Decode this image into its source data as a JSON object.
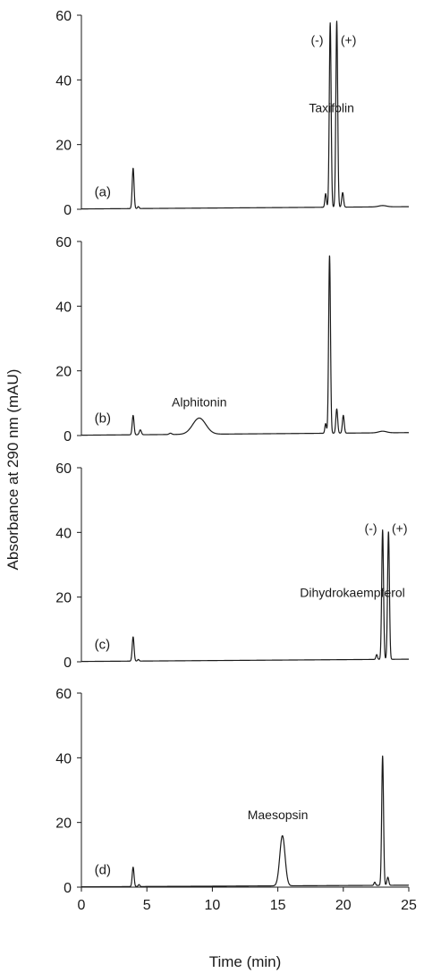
{
  "chart_data": {
    "type": "line",
    "ylabel": "Absorbance at 290 nm (mAU)",
    "xlabel": "Time (min)",
    "xlim": [
      0,
      25
    ],
    "ylim": [
      0,
      60
    ],
    "xticks": [
      0,
      5,
      10,
      15,
      20,
      25
    ],
    "yticks": [
      0,
      20,
      40,
      60
    ],
    "grid": false,
    "panels": [
      {
        "tag": "(a)",
        "annotations": [
          {
            "text": "Taxifolin",
            "x": 19.1,
            "y": 30
          },
          {
            "text": "(-)",
            "x": 18.0,
            "y": 51
          },
          {
            "text": "(+)",
            "x": 20.4,
            "y": 51
          }
        ],
        "baseline_start": 0.1,
        "baseline_end": 0.8,
        "peaks": [
          {
            "t": 3.95,
            "h": 12.5,
            "w": 0.07
          },
          {
            "t": 4.35,
            "h": 0.6,
            "w": 0.06
          },
          {
            "t": 18.65,
            "h": 4.2,
            "w": 0.06
          },
          {
            "t": 19.0,
            "h": 57,
            "w": 0.07
          },
          {
            "t": 19.5,
            "h": 57.5,
            "w": 0.07
          },
          {
            "t": 19.95,
            "h": 4.5,
            "w": 0.07
          },
          {
            "t": 23.0,
            "h": 0.4,
            "w": 0.3
          }
        ]
      },
      {
        "tag": "(b)",
        "annotations": [
          {
            "text": "Alphitonin",
            "x": 9.0,
            "y": 9
          }
        ],
        "baseline_start": 0.1,
        "baseline_end": 0.9,
        "peaks": [
          {
            "t": 3.95,
            "h": 6.0,
            "w": 0.07
          },
          {
            "t": 4.5,
            "h": 1.5,
            "w": 0.08
          },
          {
            "t": 6.8,
            "h": 0.4,
            "w": 0.1
          },
          {
            "t": 9.0,
            "h": 5.0,
            "w": 0.5
          },
          {
            "t": 18.65,
            "h": 3.0,
            "w": 0.06
          },
          {
            "t": 18.95,
            "h": 55,
            "w": 0.07
          },
          {
            "t": 19.5,
            "h": 7.5,
            "w": 0.07
          },
          {
            "t": 20.0,
            "h": 5.5,
            "w": 0.07
          },
          {
            "t": 23.0,
            "h": 0.5,
            "w": 0.3
          }
        ]
      },
      {
        "tag": "(c)",
        "annotations": [
          {
            "text": "Dihydrokaempferol",
            "x": 20.7,
            "y": 20
          },
          {
            "text": "(-)",
            "x": 22.1,
            "y": 40
          },
          {
            "text": "(+)",
            "x": 24.3,
            "y": 40
          }
        ],
        "baseline_start": 0.1,
        "baseline_end": 0.8,
        "peaks": [
          {
            "t": 3.95,
            "h": 7.5,
            "w": 0.07
          },
          {
            "t": 4.35,
            "h": 0.5,
            "w": 0.06
          },
          {
            "t": 22.55,
            "h": 1.5,
            "w": 0.06
          },
          {
            "t": 23.0,
            "h": 40,
            "w": 0.07
          },
          {
            "t": 23.45,
            "h": 39.5,
            "w": 0.07
          }
        ]
      },
      {
        "tag": "(d)",
        "annotations": [
          {
            "text": "Maesopsin",
            "x": 15.0,
            "y": 21
          }
        ],
        "baseline_start": 0.1,
        "baseline_end": 0.6,
        "peaks": [
          {
            "t": 3.95,
            "h": 6.0,
            "w": 0.07
          },
          {
            "t": 4.4,
            "h": 0.6,
            "w": 0.06
          },
          {
            "t": 15.35,
            "h": 15.5,
            "w": 0.2
          },
          {
            "t": 22.4,
            "h": 1.0,
            "w": 0.06
          },
          {
            "t": 23.0,
            "h": 40,
            "w": 0.07
          },
          {
            "t": 23.4,
            "h": 2.5,
            "w": 0.07
          }
        ]
      }
    ]
  }
}
